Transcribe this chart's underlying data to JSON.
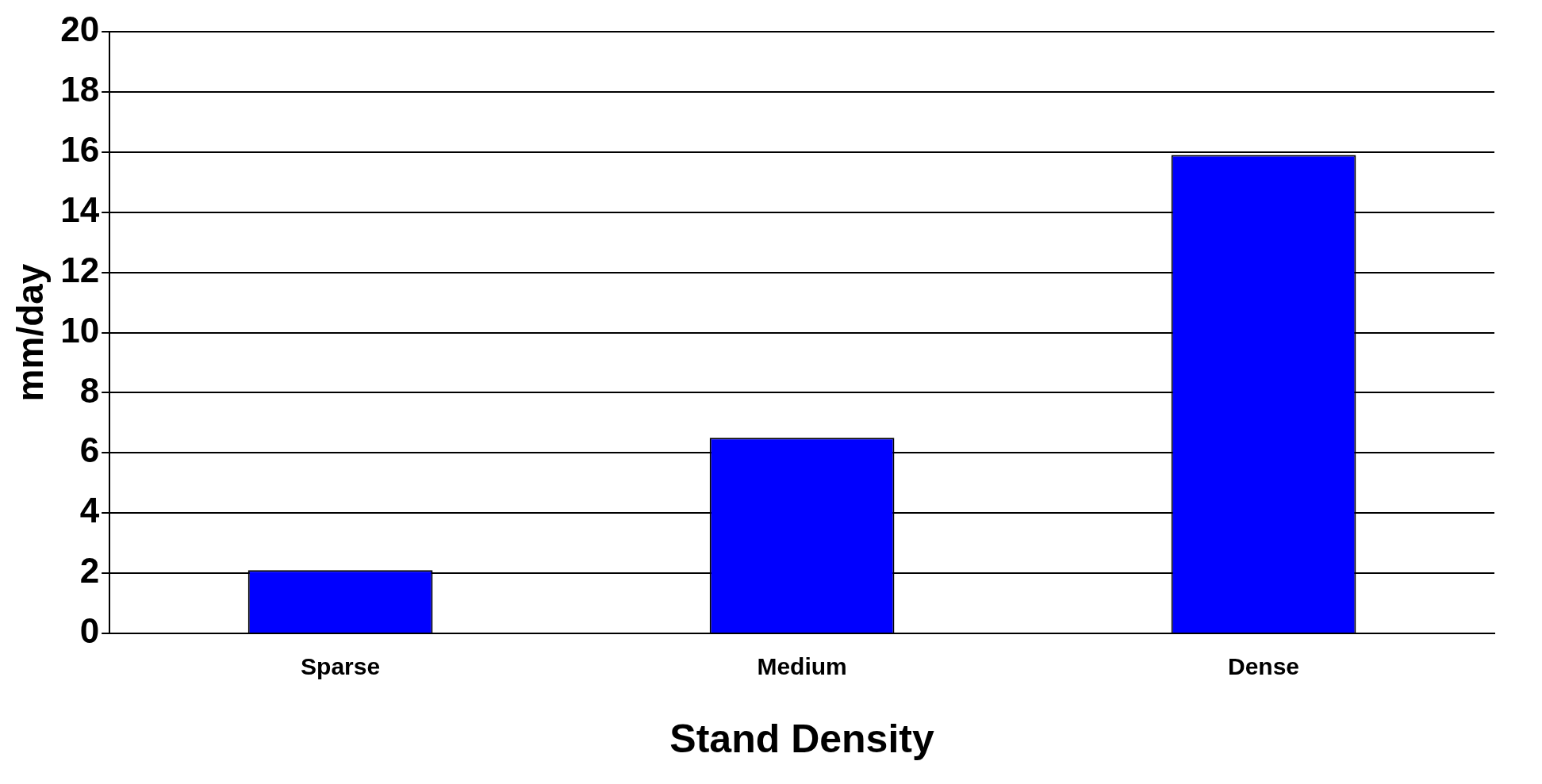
{
  "chart_data": {
    "type": "bar",
    "xlabel": "Stand Density",
    "ylabel": "mm/day",
    "categories": [
      "Sparse",
      "Medium",
      "Dense"
    ],
    "values": [
      2.1,
      6.5,
      15.9
    ],
    "color": "#0000ff",
    "ylim": [
      0,
      20
    ],
    "yticks": [
      0,
      2,
      4,
      6,
      8,
      10,
      12,
      14,
      16,
      18,
      20
    ],
    "grid": "y"
  }
}
